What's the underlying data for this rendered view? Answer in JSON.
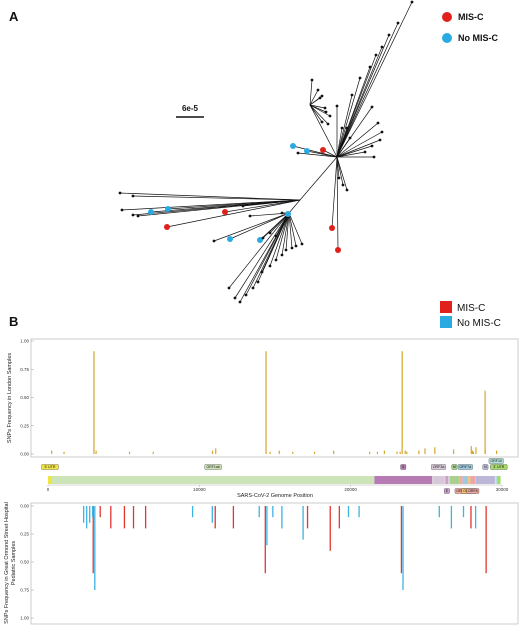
{
  "figure": {
    "panel_a_letter": "A",
    "panel_b_letter": "B",
    "scale_bar_label": "6e-5",
    "legend_a": [
      {
        "label": "MIS-C",
        "color": "#e0201b"
      },
      {
        "label": "No MIS-C",
        "color": "#29abe2"
      }
    ],
    "legend_b": [
      {
        "label": "MIS-C",
        "color": "#e0201b"
      },
      {
        "label": "No MIS-C",
        "color": "#29abe2"
      }
    ],
    "top_ylabel": "SNPs Frequency in London Samples",
    "bottom_ylabel_line1": "SNPs Frequency in Great Ormond Street Hospital",
    "bottom_ylabel_line2": "Pediatric Samples",
    "xlabel": "SARS-CoV-2 Genome Position"
  },
  "genes": [
    {
      "label": "5' UTR",
      "start": 0,
      "end": 265,
      "color": "#f0e442"
    },
    {
      "label": "ORF1ab",
      "start": 266,
      "end": 21555,
      "color": "#cde4b8"
    },
    {
      "label": "S",
      "start": 21563,
      "end": 25384,
      "color": "#b77bb3"
    },
    {
      "label": "ORF3a",
      "start": 25393,
      "end": 26220,
      "color": "#d8c9d8"
    },
    {
      "label": "E",
      "start": 26245,
      "end": 26472,
      "color": "#c9a3c9"
    },
    {
      "label": "M",
      "start": 26523,
      "end": 27191,
      "color": "#a9d18e"
    },
    {
      "label": "ORF6",
      "start": 27202,
      "end": 27387,
      "color": "#f4a6a0"
    },
    {
      "label": "ORF7a",
      "start": 27394,
      "end": 27759,
      "color": "#9ecae1"
    },
    {
      "label": "ORF7b",
      "start": 27756,
      "end": 27887,
      "color": "#f8c471"
    },
    {
      "label": "ORF8",
      "start": 27894,
      "end": 28259,
      "color": "#e8a7a0"
    },
    {
      "label": "N",
      "start": 28274,
      "end": 29533,
      "color": "#bcb6d9"
    },
    {
      "label": "ORF10",
      "start": 29558,
      "end": 29674,
      "color": "#b2dfdb"
    },
    {
      "label": "3' UTR",
      "start": 29675,
      "end": 29903,
      "color": "#a6d96a"
    }
  ],
  "chart_data": [
    {
      "type": "tree",
      "tree_type": "unrooted phylogenetic tree",
      "legend": [
        "MIS-C",
        "No MIS-C"
      ],
      "scale_bar": "6e-5",
      "note": "radial tree of SARS-CoV-2 genomes; tips colored MIS-C (red) / No MIS-C (blue), others black"
    },
    {
      "type": "bar",
      "ylabel": "SNPs Frequency in London Samples",
      "xlabel": "SARS-CoV-2 Genome Position",
      "xlim": [
        0,
        30000
      ],
      "ylim": [
        0,
        1
      ],
      "xticks": [
        "0",
        "10000",
        "20000",
        "30000"
      ],
      "yticks": [
        "0.00",
        "0.25",
        "0.50",
        "0.75",
        "1.00"
      ],
      "color": "#d4a72c",
      "x": [
        241,
        1059,
        3037,
        3177,
        5388,
        6954,
        10870,
        11083,
        14408,
        14676,
        15279,
        16176,
        17615,
        18877,
        21255,
        21765,
        22227,
        23063,
        23271,
        23403,
        23604,
        23709,
        24506,
        24914,
        25563,
        26801,
        27972,
        28048,
        28111,
        28280,
        28881,
        28882,
        28883,
        29645
      ],
      "values": [
        0.03,
        0.02,
        0.91,
        0.03,
        0.02,
        0.02,
        0.03,
        0.05,
        0.91,
        0.02,
        0.03,
        0.02,
        0.02,
        0.03,
        0.02,
        0.02,
        0.03,
        0.02,
        0.02,
        0.91,
        0.03,
        0.02,
        0.03,
        0.05,
        0.06,
        0.04,
        0.07,
        0.03,
        0.02,
        0.06,
        0.04,
        0.03,
        0.56,
        0.03
      ]
    },
    {
      "type": "bar",
      "ylabel": "SNPs Frequency in Great Ormond Street Hospital Pediatric Samples",
      "ylim": [
        1,
        0
      ],
      "yticks": [
        "0.00",
        "0.25",
        "0.50",
        "0.75",
        "1.00"
      ],
      "series": [
        {
          "name": "MIS-C",
          "x": [
            3037,
            3500,
            4200,
            5100,
            5700,
            6500,
            11100,
            12300,
            14408,
            17200,
            18700,
            19300,
            23403,
            28000,
            29000
          ],
          "values": [
            0.6,
            0.1,
            0.2,
            0.2,
            0.2,
            0.2,
            0.2,
            0.2,
            0.6,
            0.2,
            0.4,
            0.2,
            0.6,
            0.2,
            0.6
          ]
        },
        {
          "name": "No MIS-C",
          "x": [
            2300,
            2500,
            2700,
            2900,
            3037,
            9500,
            10800,
            13900,
            14408,
            14800,
            15400,
            16800,
            19800,
            20500,
            23403,
            25800,
            26600,
            27400,
            28200
          ],
          "values": [
            0.15,
            0.2,
            0.15,
            0.1,
            0.75,
            0.1,
            0.15,
            0.1,
            0.35,
            0.1,
            0.2,
            0.3,
            0.1,
            0.1,
            0.75,
            0.1,
            0.2,
            0.1,
            0.2
          ]
        }
      ]
    }
  ]
}
